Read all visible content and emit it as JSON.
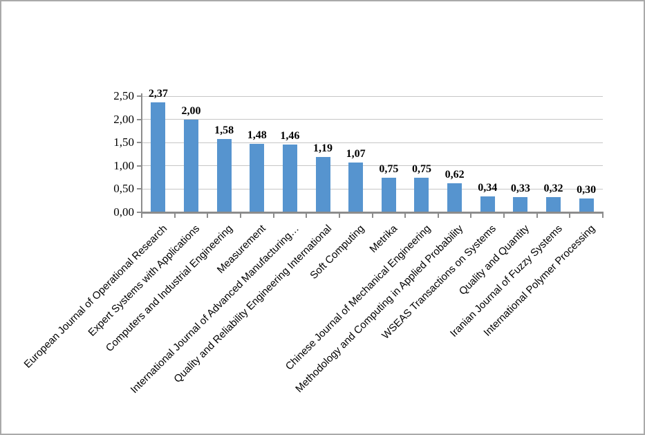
{
  "chart_data": {
    "type": "bar",
    "title": "",
    "xlabel": "",
    "ylabel": "",
    "legend": "none",
    "grid": "horizontal",
    "decimal_separator": ",",
    "categories": [
      "European Journal of Operational Research",
      "Expert Systems with Applications",
      "Computers and Industrial Engineering",
      "Measurement",
      "International Journal of Advanced Manufacturing…",
      "Quality and Reliability Engineering International",
      "Soft Computing",
      "Metrika",
      "Chinese Journal of Mechanical Engineering",
      "Methodology and Computing in Applied Probability",
      "WSEAS Transactions on Systems",
      "Quality and Quantity",
      "Iranian Journal of Fuzzy Systems",
      "International Polymer Processing"
    ],
    "values": [
      2.37,
      2.0,
      1.58,
      1.48,
      1.46,
      1.19,
      1.07,
      0.75,
      0.75,
      0.62,
      0.34,
      0.33,
      0.32,
      0.3
    ],
    "value_labels": [
      "2,37",
      "2,00",
      "1,58",
      "1,48",
      "1,46",
      "1,19",
      "1,07",
      "0,75",
      "0,75",
      "0,62",
      "0,34",
      "0,33",
      "0,32",
      "0,30"
    ],
    "y_ticks": [
      {
        "value": 0.0,
        "label": "0,00"
      },
      {
        "value": 0.5,
        "label": "0,50"
      },
      {
        "value": 1.0,
        "label": "1,00"
      },
      {
        "value": 1.5,
        "label": "1,50"
      },
      {
        "value": 2.0,
        "label": "2,00"
      },
      {
        "value": 2.5,
        "label": "2,50"
      }
    ],
    "ylim": [
      0,
      2.5
    ],
    "colors": {
      "bar": "#5694CF",
      "gridline": "#C6C6C6",
      "axis": "#8C8C8C",
      "text": "#000000",
      "frame_border": "#A9A9A9",
      "background": "#FFFFFF"
    }
  }
}
